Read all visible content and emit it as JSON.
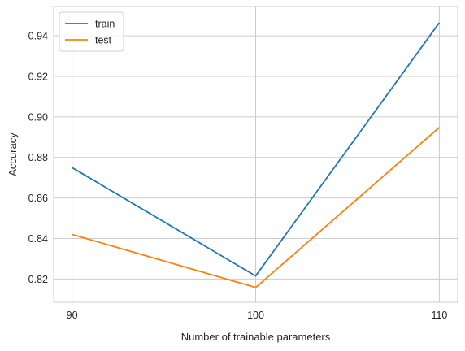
{
  "chart_data": {
    "type": "line",
    "x": [
      90,
      100,
      110
    ],
    "xticks": [
      "90",
      "100",
      "110"
    ],
    "yticks": [
      "0.82",
      "0.84",
      "0.86",
      "0.88",
      "0.90",
      "0.92",
      "0.94"
    ],
    "ytick_values": [
      0.82,
      0.84,
      0.86,
      0.88,
      0.9,
      0.92,
      0.94
    ],
    "xlim": [
      89,
      111
    ],
    "ylim": [
      0.8085,
      0.9545
    ],
    "xlabel": "Number of trainable parameters",
    "ylabel": "Accuracy",
    "grid": true,
    "legend_position": "top-left",
    "series": [
      {
        "name": "train",
        "color": "#1f77b4",
        "values": [
          0.875,
          0.8215,
          0.9465
        ]
      },
      {
        "name": "test",
        "color": "#ff7f0e",
        "values": [
          0.842,
          0.8158,
          0.8948
        ]
      }
    ]
  }
}
